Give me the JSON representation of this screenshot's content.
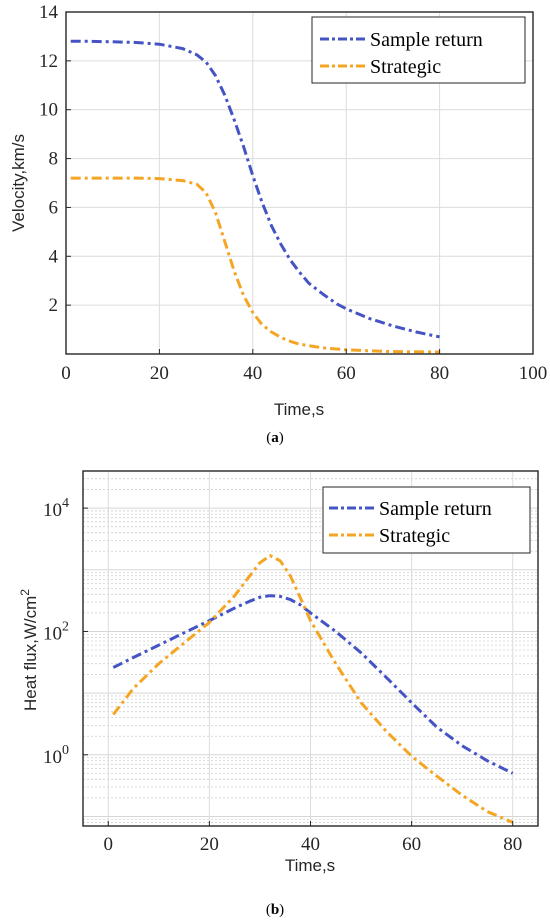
{
  "chart_data": [
    {
      "type": "line",
      "panel_label": "(a)",
      "xlabel": "Time,s",
      "ylabel": "Velocity,km/s",
      "xlim": [
        0,
        100
      ],
      "ylim": [
        0,
        14
      ],
      "xticks": [
        "0",
        "20",
        "40",
        "60",
        "80",
        "100"
      ],
      "yticks": [
        "2",
        "4",
        "6",
        "8",
        "10",
        "12",
        "14"
      ],
      "grid": true,
      "legend_position": "top-right",
      "series": [
        {
          "name": "Sample return",
          "color": "#4454c4",
          "style": "dash-dot",
          "x": [
            1,
            5,
            10,
            15,
            20,
            25,
            28,
            30,
            32,
            34,
            36,
            38,
            40,
            42,
            44,
            46,
            48,
            50,
            52,
            55,
            58,
            60,
            65,
            70,
            75,
            80
          ],
          "y": [
            12.8,
            12.8,
            12.78,
            12.75,
            12.68,
            12.5,
            12.25,
            11.95,
            11.4,
            10.6,
            9.6,
            8.5,
            7.3,
            6.2,
            5.25,
            4.5,
            3.85,
            3.35,
            2.9,
            2.45,
            2.05,
            1.85,
            1.45,
            1.15,
            0.9,
            0.7
          ]
        },
        {
          "name": "Strategic",
          "color": "#f5a524",
          "style": "dash-dot",
          "x": [
            1,
            5,
            10,
            15,
            20,
            25,
            28,
            30,
            32,
            34,
            36,
            38,
            40,
            42,
            44,
            46,
            48,
            50,
            55,
            60,
            65,
            70,
            75,
            80
          ],
          "y": [
            7.2,
            7.2,
            7.2,
            7.2,
            7.18,
            7.1,
            6.95,
            6.6,
            5.8,
            4.6,
            3.4,
            2.4,
            1.7,
            1.2,
            0.9,
            0.68,
            0.52,
            0.4,
            0.25,
            0.17,
            0.13,
            0.1,
            0.09,
            0.08
          ]
        }
      ]
    },
    {
      "type": "line",
      "panel_label": "(b)",
      "xlabel": "Time,s",
      "ylabel": "Heat flux,W/cm",
      "ylabel_superscript": "2",
      "yscale": "log",
      "xlim": [
        -5,
        85
      ],
      "ylim": [
        0.07,
        40000
      ],
      "xticks": [
        "0",
        "20",
        "40",
        "60",
        "80"
      ],
      "yticks": [
        {
          "base": "10",
          "exp": "0"
        },
        {
          "base": "10",
          "exp": "2"
        },
        {
          "base": "10",
          "exp": "4"
        }
      ],
      "grid": true,
      "minor_grid": true,
      "legend_position": "top-right",
      "series": [
        {
          "name": "Sample return",
          "color": "#4454c4",
          "style": "dash-dot",
          "x": [
            1,
            5,
            10,
            15,
            20,
            25,
            28,
            30,
            32,
            34,
            36,
            38,
            40,
            45,
            50,
            55,
            60,
            65,
            70,
            75,
            80
          ],
          "y": [
            26,
            38,
            60,
            95,
            150,
            240,
            310,
            360,
            380,
            370,
            330,
            270,
            200,
            100,
            45,
            18,
            7,
            2.8,
            1.4,
            0.8,
            0.5
          ]
        },
        {
          "name": "Strategic",
          "color": "#f5a524",
          "style": "dash-dot",
          "x": [
            1,
            5,
            10,
            15,
            20,
            25,
            28,
            30,
            32,
            34,
            36,
            38,
            40,
            45,
            50,
            55,
            60,
            65,
            70,
            75,
            80
          ],
          "y": [
            4.5,
            12,
            30,
            65,
            140,
            380,
            800,
            1300,
            1700,
            1400,
            800,
            350,
            150,
            30,
            7,
            2.4,
            0.95,
            0.45,
            0.22,
            0.12,
            0.08
          ]
        }
      ]
    }
  ]
}
